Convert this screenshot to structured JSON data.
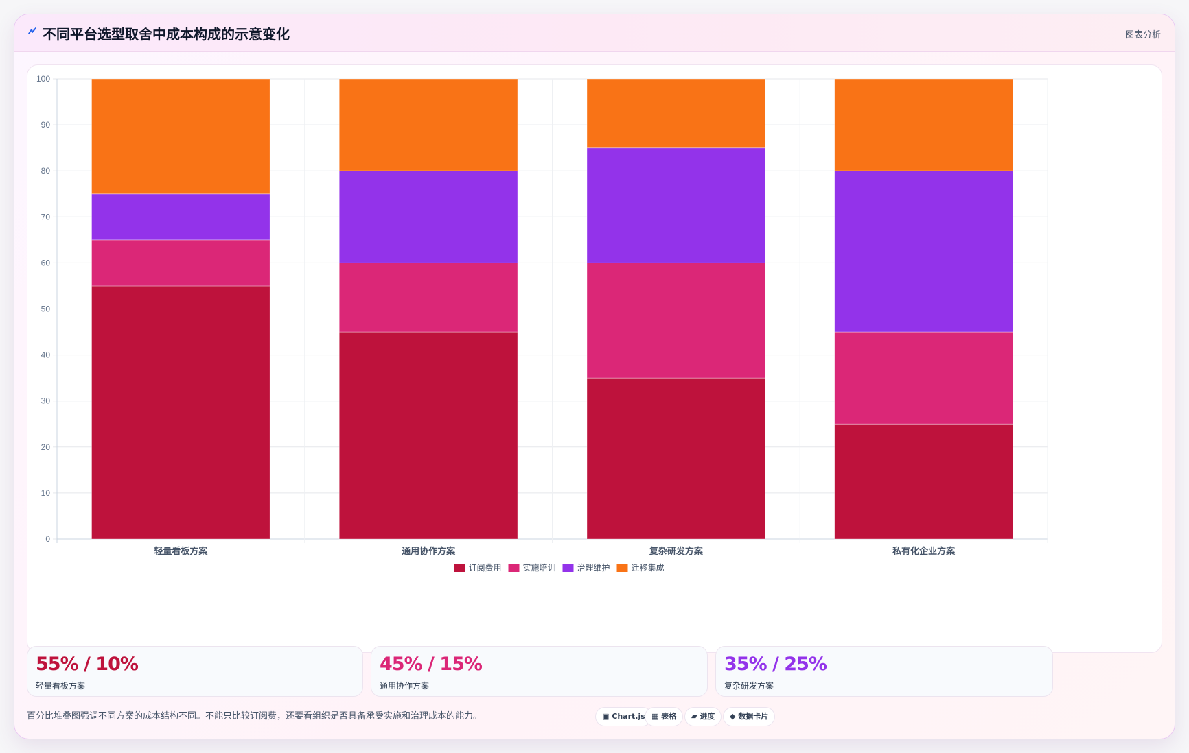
{
  "header": {
    "title": "不同平台选型取舍中成本构成的示意变化",
    "link_label": "图表分析"
  },
  "chart_data": {
    "type": "bar",
    "stacked": true,
    "categories": [
      "轻量看板方案",
      "通用协作方案",
      "复杂研发方案",
      "私有化企业方案"
    ],
    "series": [
      {
        "name": "订阅费用",
        "color": "#be123c",
        "values": [
          55,
          45,
          35,
          25
        ]
      },
      {
        "name": "实施培训",
        "color": "#db2777",
        "values": [
          10,
          15,
          25,
          20
        ]
      },
      {
        "name": "治理维护",
        "color": "#9333ea",
        "values": [
          10,
          20,
          25,
          35
        ]
      },
      {
        "name": "迁移集成",
        "color": "#f97316",
        "values": [
          25,
          20,
          15,
          20
        ]
      }
    ],
    "ylim": [
      0,
      100
    ],
    "yticks": [
      0,
      10,
      20,
      30,
      40,
      50,
      60,
      70,
      80,
      90,
      100
    ],
    "grid": true,
    "legend_position": "bottom"
  },
  "stats": [
    {
      "value": "55% / 10%",
      "label": "轻量看板方案",
      "color": "#be123c"
    },
    {
      "value": "45% / 15%",
      "label": "通用协作方案",
      "color": "#db2777"
    },
    {
      "value": "35% / 25%",
      "label": "复杂研发方案",
      "color": "#9333ea"
    }
  ],
  "footnote": "百分比堆叠图强调不同方案的成本结构不同。不能只比较订阅费，还要看组织是否具备承受实施和治理成本的能力。",
  "chips": [
    {
      "icon": "▣",
      "label": "Chart.js",
      "icon_name": "chart-icon"
    },
    {
      "icon": "▦",
      "label": "表格",
      "icon_name": "table-icon"
    },
    {
      "icon": "▰",
      "label": "进度",
      "icon_name": "progress-icon"
    },
    {
      "icon": "◆",
      "label": "数据卡片",
      "icon_name": "card-icon"
    }
  ]
}
